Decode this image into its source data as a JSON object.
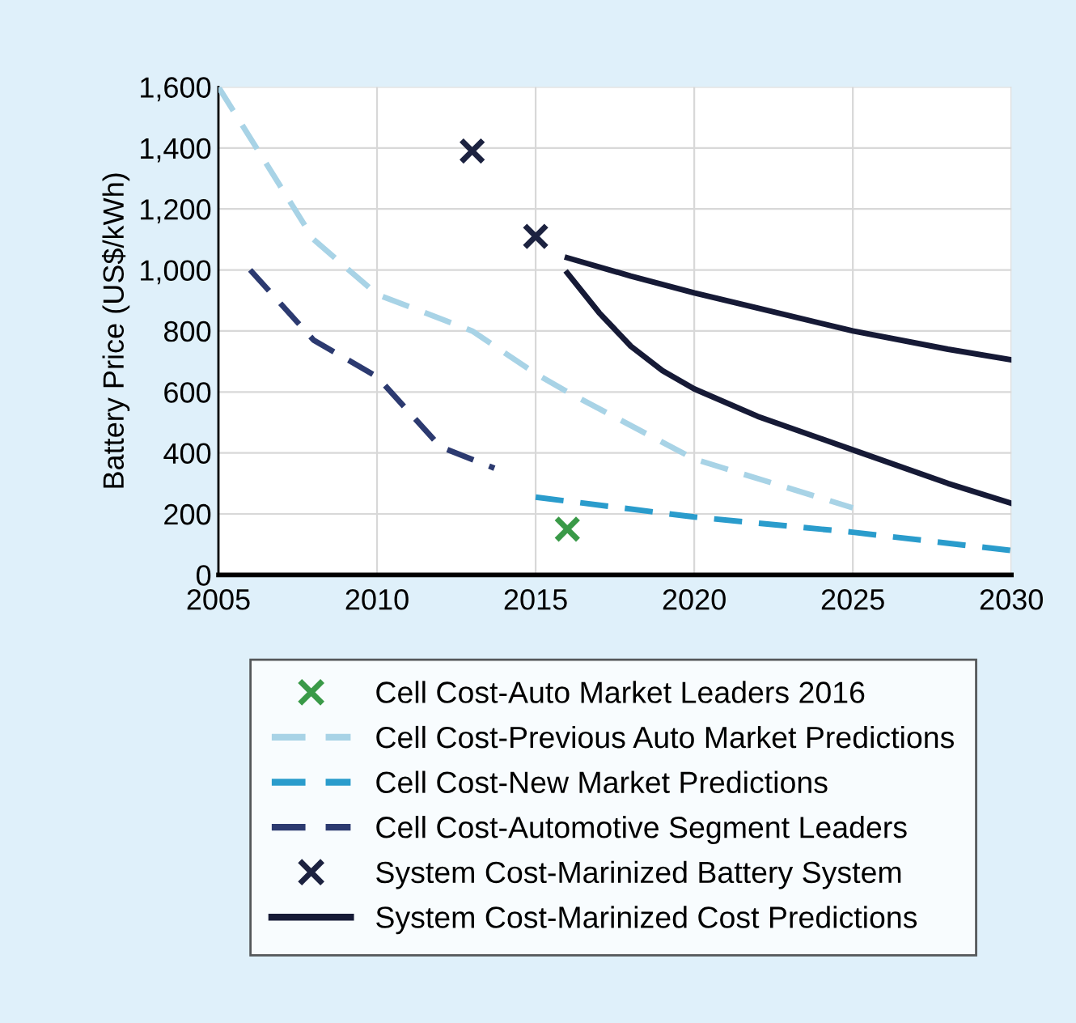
{
  "chart_data": {
    "type": "line",
    "ylabel": "Battery Price (US$/kWh)",
    "xlim": [
      2005,
      2030
    ],
    "xticks": [
      2005,
      2010,
      2015,
      2020,
      2025,
      2030
    ],
    "ylim": [
      0,
      1600
    ],
    "yticks": [
      0,
      {
        "value": 200,
        "label": "200"
      },
      {
        "value": 400,
        "label": "400"
      },
      {
        "value": 600,
        "label": "600"
      },
      {
        "value": 800,
        "label": "800"
      },
      {
        "value": 1000,
        "label": "1,000"
      },
      {
        "value": 1200,
        "label": "1,200"
      },
      {
        "value": 1400,
        "label": "1,400"
      },
      {
        "value": 1600,
        "label": "1,600"
      }
    ],
    "grid": true,
    "legend": "bottom",
    "series": [
      {
        "name": "Cell Cost-Auto Market Leaders 2016",
        "type": "scatter",
        "marker": "cross",
        "color": "#3a9a48",
        "x": [
          2016
        ],
        "values": [
          150
        ]
      },
      {
        "name": "Cell Cost-Previous Auto Market Predictions",
        "line_style": "dashed",
        "color": "#a8d3e6",
        "x": [
          2005,
          2008,
          2010,
          2013,
          2015,
          2016,
          2020,
          2025
        ],
        "values": [
          1600,
          1100,
          920,
          800,
          660,
          600,
          380,
          220
        ]
      },
      {
        "name": "Cell Cost-New Market Predictions",
        "line_style": "dashed",
        "color": "#2a9ccc",
        "x": [
          2015,
          2020,
          2025,
          2030
        ],
        "values": [
          255,
          190,
          140,
          80
        ]
      },
      {
        "name": "Cell Cost-Automotive Segment Leaders",
        "line_style": "dashed",
        "color": "#2c3a70",
        "x": [
          2006,
          2008,
          2010,
          2012,
          2013.7
        ],
        "values": [
          1000,
          770,
          650,
          420,
          350
        ]
      },
      {
        "name": "System Cost-Marinized Battery System",
        "type": "scatter",
        "marker": "cross",
        "color": "#1c2240",
        "x": [
          2013,
          2015
        ],
        "values": [
          1390,
          1110
        ]
      },
      {
        "name": "System Cost-Marinized Cost Predictions",
        "line_style": "solid",
        "color": "#161a36",
        "x": [
          2016,
          2018,
          2020,
          2022,
          2025,
          2028,
          2030
        ],
        "values": [
          1040,
          980,
          925,
          875,
          800,
          740,
          705
        ]
      },
      {
        "line_style": "solid",
        "color": "#161a36",
        "x": [
          2016,
          2017,
          2018,
          2019,
          2020,
          2022,
          2025,
          2028,
          2030
        ],
        "values": [
          990,
          860,
          750,
          670,
          610,
          520,
          410,
          300,
          235
        ]
      }
    ]
  }
}
